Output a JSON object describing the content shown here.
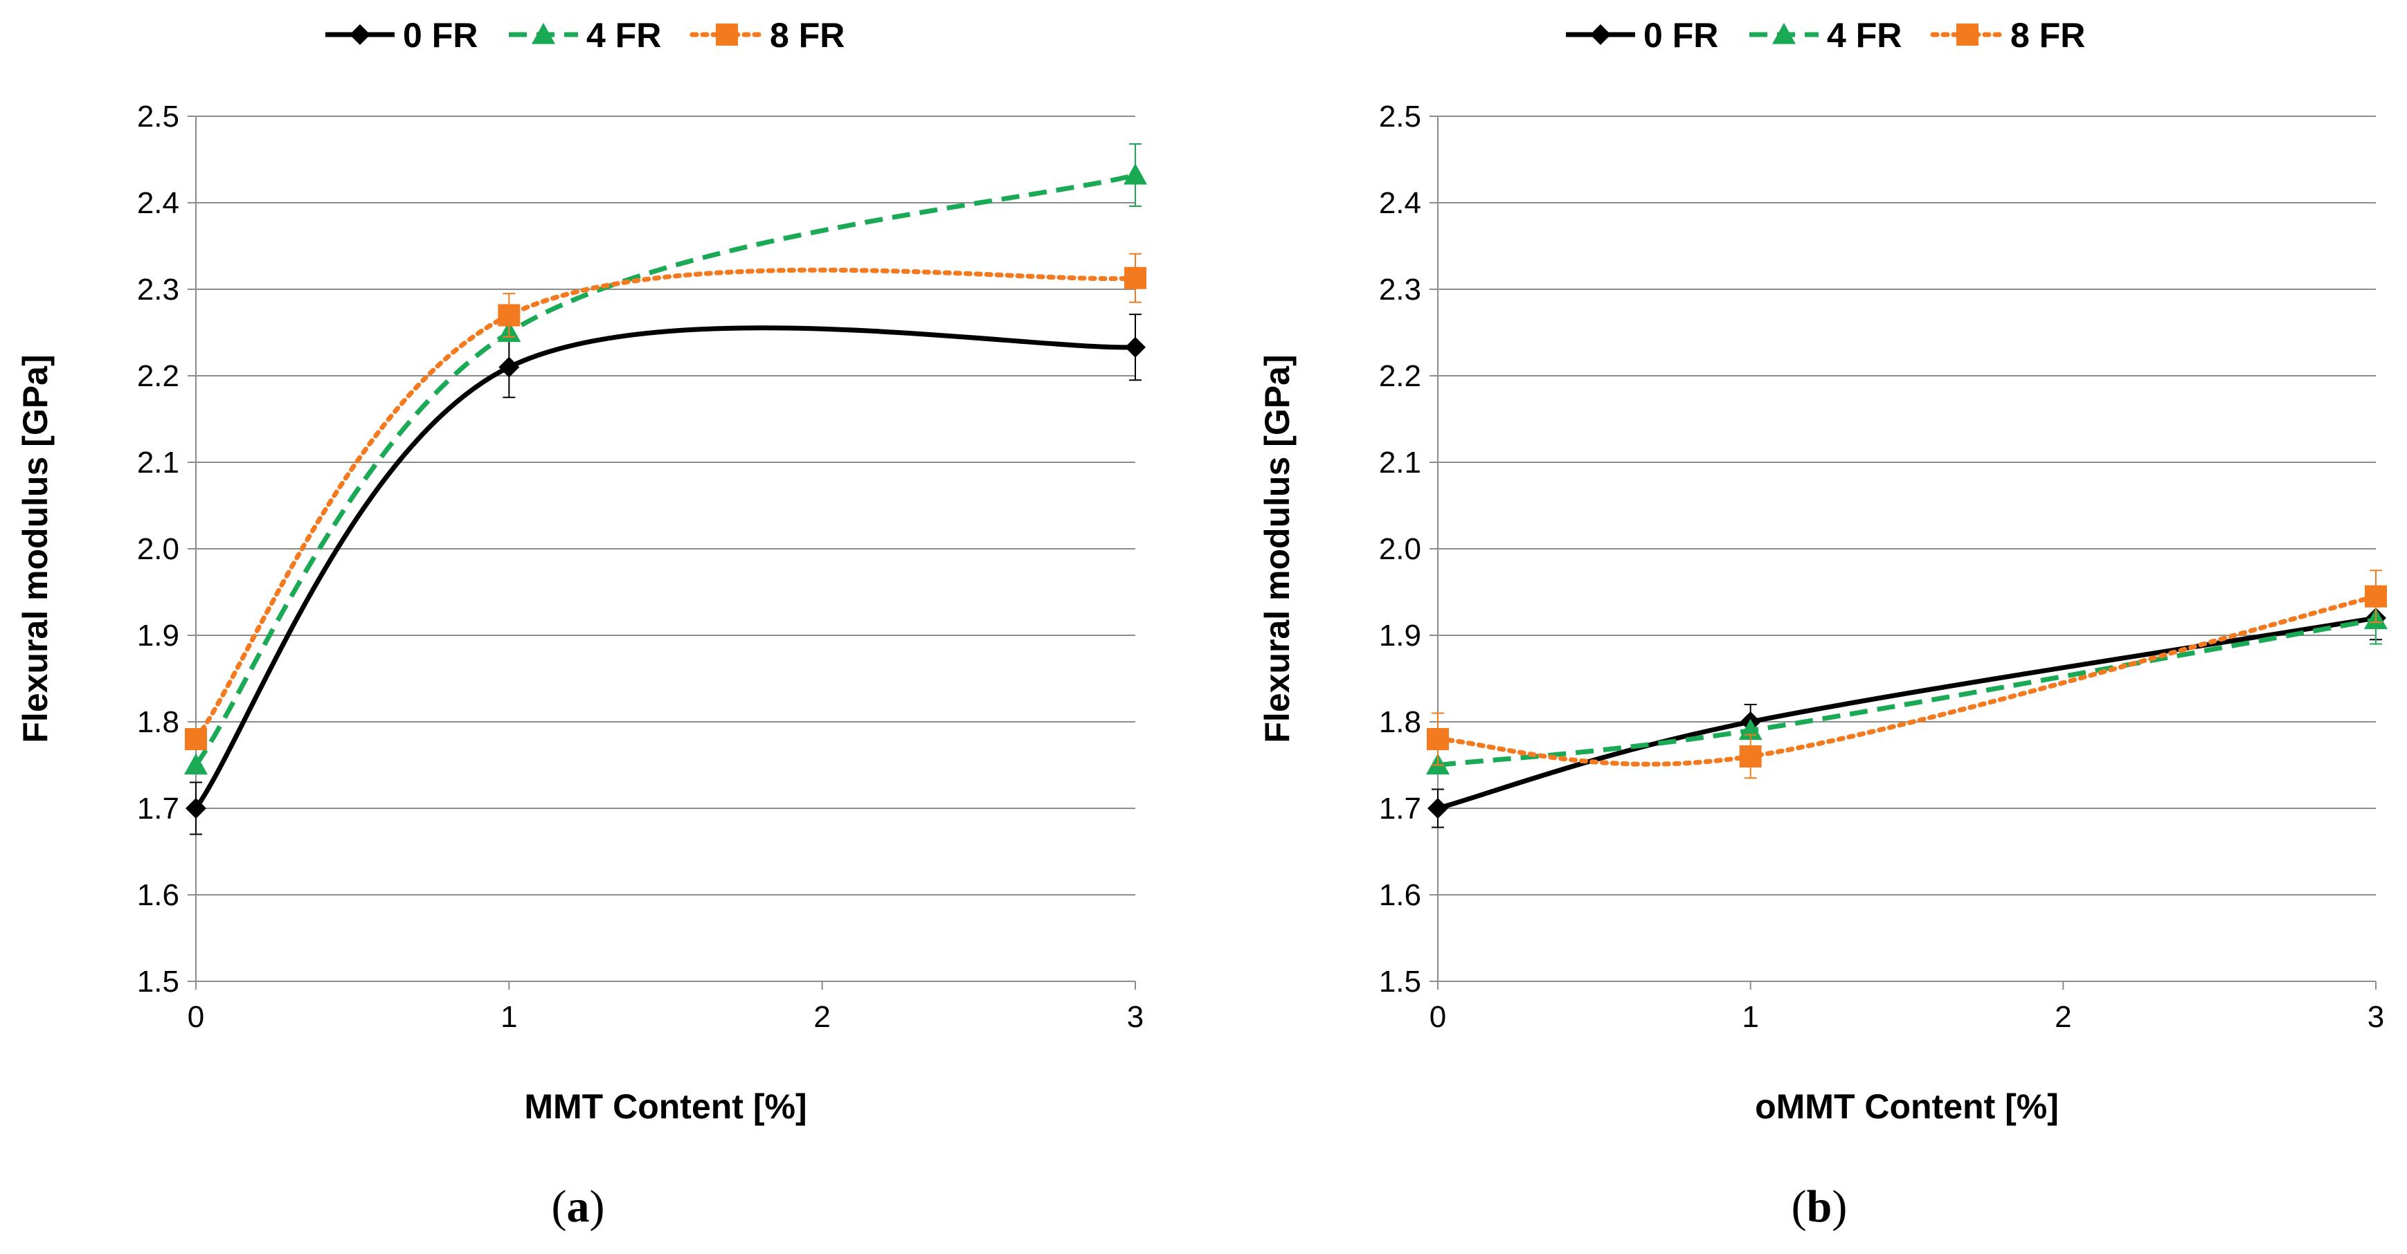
{
  "chart_data": [
    {
      "type": "line",
      "caption": "a",
      "xlabel": "MMT Content [%]",
      "ylabel": "Flexural modulus [GPa]",
      "xlim": [
        0,
        3
      ],
      "ylim": [
        1.5,
        2.5
      ],
      "xticks": [
        "0",
        "1",
        "2",
        "3"
      ],
      "yticks": [
        "1.5",
        "1.6",
        "1.7",
        "1.8",
        "1.9",
        "2.0",
        "2.1",
        "2.2",
        "2.3",
        "2.4",
        "2.5"
      ],
      "grid": true,
      "legend_position": "top",
      "series": [
        {
          "name": "0 FR",
          "color": "#000000",
          "marker": "diamond",
          "line": "solid",
          "x": [
            0,
            1,
            3
          ],
          "y": [
            1.7,
            2.21,
            2.233
          ],
          "err": [
            0.03,
            0.035,
            0.038
          ]
        },
        {
          "name": "4 FR",
          "color": "#1aaa55",
          "marker": "triangle",
          "line": "dashed",
          "x": [
            0,
            1,
            3
          ],
          "y": [
            1.75,
            2.25,
            2.432
          ],
          "err": [
            0.0,
            0.0,
            0.036
          ]
        },
        {
          "name": "8 FR",
          "color": "#f47a20",
          "marker": "square",
          "line": "dotted",
          "x": [
            0,
            1,
            3
          ],
          "y": [
            1.78,
            2.27,
            2.313
          ],
          "err": [
            0.0,
            0.025,
            0.028
          ]
        }
      ]
    },
    {
      "type": "line",
      "caption": "b",
      "xlabel": "oMMT Content [%]",
      "ylabel": "Flexural modulus [GPa]",
      "xlim": [
        0,
        3
      ],
      "ylim": [
        1.5,
        2.5
      ],
      "xticks": [
        "0",
        "1",
        "2",
        "3"
      ],
      "yticks": [
        "1.5",
        "1.6",
        "1.7",
        "1.8",
        "1.9",
        "2.0",
        "2.1",
        "2.2",
        "2.3",
        "2.4",
        "2.5"
      ],
      "grid": true,
      "legend_position": "top",
      "series": [
        {
          "name": "0 FR",
          "color": "#000000",
          "marker": "diamond",
          "line": "solid",
          "x": [
            0,
            1,
            3
          ],
          "y": [
            1.7,
            1.8,
            1.92
          ],
          "err": [
            0.022,
            0.02,
            0.025
          ]
        },
        {
          "name": "4 FR",
          "color": "#1aaa55",
          "marker": "triangle",
          "line": "dashed",
          "x": [
            0,
            1,
            3
          ],
          "y": [
            1.75,
            1.79,
            1.918
          ],
          "err": [
            0.0,
            0.0,
            0.028
          ]
        },
        {
          "name": "8 FR",
          "color": "#f47a20",
          "marker": "square",
          "line": "dotted",
          "x": [
            0,
            1,
            3
          ],
          "y": [
            1.78,
            1.76,
            1.945
          ],
          "err": [
            0.03,
            0.025,
            0.03
          ]
        }
      ]
    }
  ]
}
